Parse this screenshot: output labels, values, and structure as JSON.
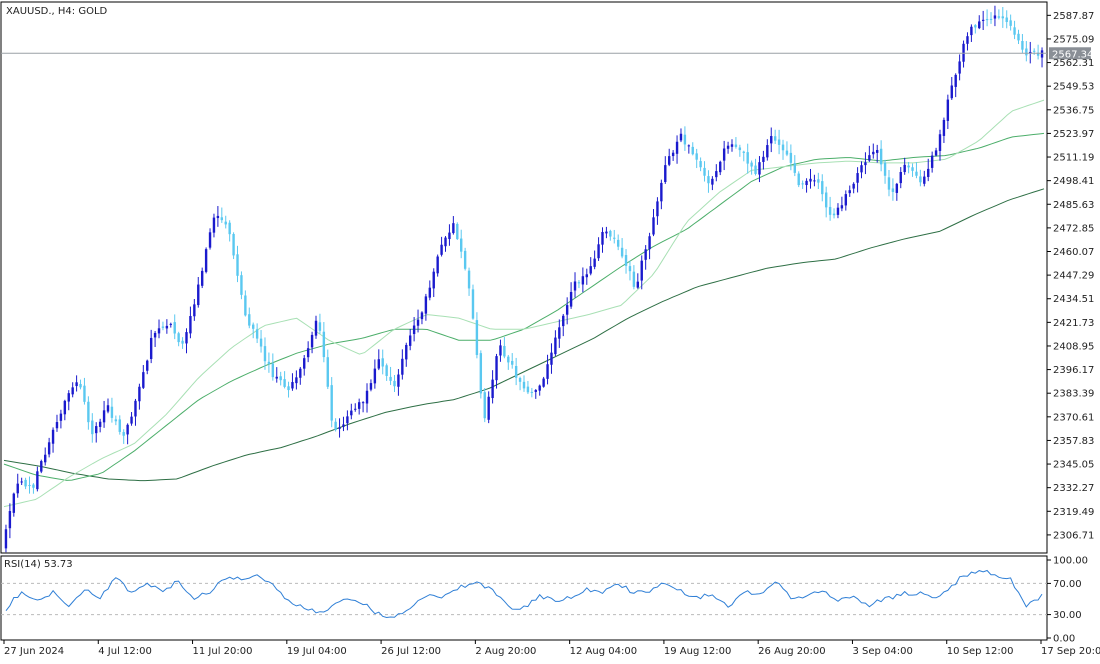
{
  "header": {
    "title": "XAUUSD., H4:  GOLD"
  },
  "price_tag": {
    "value": "2567.34",
    "value_num": 2567.34,
    "bg": "#8a8f96"
  },
  "rsi_header": {
    "label": "RSI(14) 53.73"
  },
  "colors": {
    "bull_body": "#1a1acd",
    "bear_body": "#5ac8f0",
    "ma_fast": "#a8e0b4",
    "ma_mid": "#4cae6a",
    "ma_slow": "#2e6f45",
    "rsi_line": "#2f7fd6",
    "bid_line": "#9aa0a6"
  },
  "chart_data": [
    {
      "type": "candlestick",
      "symbol": "XAUUSD.",
      "timeframe": "H4",
      "ylim": [
        2298.0,
        2594.0
      ],
      "y_ticks": [
        "2587.87",
        "2575.09",
        "2562.31",
        "2549.53",
        "2536.75",
        "2523.97",
        "2511.19",
        "2498.41",
        "2485.63",
        "2472.85",
        "2460.07",
        "2447.29",
        "2434.51",
        "2421.73",
        "2408.95",
        "2396.17",
        "2383.39",
        "2370.61",
        "2357.83",
        "2345.05",
        "2332.27",
        "2319.49",
        "2306.71"
      ],
      "x_labels": [
        "27 Jun 2024",
        "4 Jul 12:00",
        "11 Jul 20:00",
        "19 Jul 04:00",
        "26 Jul 12:00",
        "2 Aug 20:00",
        "12 Aug 04:00",
        "19 Aug 12:00",
        "26 Aug 20:00",
        "3 Sep 04:00",
        "10 Sep 12:00",
        "17 Sep 20:00"
      ],
      "anchors": [
        2300,
        2335,
        2332,
        2355,
        2375,
        2392,
        2360,
        2377,
        2358,
        2382,
        2415,
        2422,
        2408,
        2440,
        2480,
        2473,
        2430,
        2410,
        2392,
        2386,
        2400,
        2425,
        2360,
        2372,
        2380,
        2400,
        2386,
        2415,
        2430,
        2462,
        2475,
        2440,
        2368,
        2410,
        2395,
        2382,
        2392,
        2420,
        2442,
        2450,
        2474,
        2462,
        2440,
        2470,
        2505,
        2524,
        2510,
        2496,
        2518,
        2515,
        2502,
        2523,
        2512,
        2495,
        2500,
        2478,
        2490,
        2506,
        2515,
        2490,
        2508,
        2498,
        2515,
        2550,
        2578,
        2586,
        2588,
        2582,
        2566,
        2567.34
      ],
      "ma_fast_keys": [
        2322,
        2326,
        2338,
        2348,
        2356,
        2372,
        2392,
        2408,
        2420,
        2424,
        2412,
        2404,
        2418,
        2426,
        2424,
        2418,
        2418,
        2422,
        2426,
        2431,
        2448,
        2476,
        2492,
        2504,
        2506,
        2508,
        2509,
        2508,
        2508,
        2510,
        2520,
        2536,
        2542
      ],
      "ma_mid_keys": [
        2345,
        2339,
        2336,
        2340,
        2352,
        2366,
        2380,
        2390,
        2398,
        2405,
        2410,
        2413,
        2418,
        2418,
        2412,
        2412,
        2418,
        2428,
        2440,
        2452,
        2463,
        2472,
        2485,
        2498,
        2506,
        2510,
        2511,
        2509,
        2511,
        2512,
        2516,
        2522,
        2524
      ],
      "ma_slow_keys": [
        2347,
        2344,
        2340,
        2337,
        2336,
        2337,
        2344,
        2350,
        2354,
        2360,
        2367,
        2373,
        2377,
        2380,
        2386,
        2395,
        2404,
        2413,
        2424,
        2433,
        2441,
        2446,
        2451,
        2454,
        2456,
        2462,
        2467,
        2471,
        2480,
        2488,
        2494
      ]
    },
    {
      "type": "line",
      "name": "RSI(14)",
      "ylim": [
        0,
        100
      ],
      "y_ticks": [
        "100.00",
        "70.00",
        "30.00",
        "0.00"
      ],
      "levels": [
        70,
        30
      ],
      "anchors": [
        38,
        60,
        48,
        58,
        42,
        62,
        50,
        80,
        58,
        70,
        62,
        72,
        52,
        60,
        78,
        75,
        82,
        68,
        46,
        38,
        33,
        44,
        50,
        41,
        27,
        30,
        42,
        55,
        54,
        66,
        72,
        62,
        40,
        38,
        55,
        46,
        53,
        62,
        58,
        70,
        58,
        60,
        71,
        60,
        52,
        55,
        40,
        60,
        56,
        72,
        52,
        53,
        62,
        48,
        54,
        42,
        50,
        56,
        58,
        52,
        62,
        80,
        86,
        82,
        75,
        40,
        53.73
      ]
    }
  ]
}
